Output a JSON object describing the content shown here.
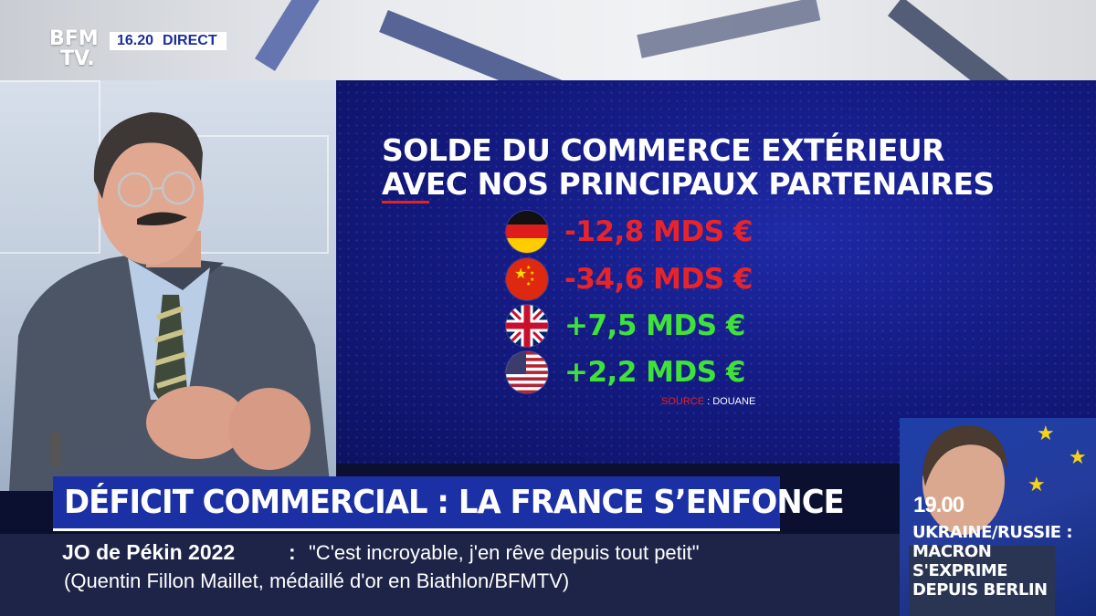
{
  "channel": {
    "logo_line1": "BFM",
    "logo_line2": "TV.",
    "time": "16.20",
    "live_label": "DIRECT"
  },
  "graphic": {
    "title_line1": "SOLDE DU COMMERCE EXTÉRIEUR",
    "title_line2": "AVEC NOS PRINCIPAUX PARTENAIRES",
    "rows": [
      {
        "flag": "germany-flag-icon",
        "value": "-12,8 MDS €",
        "color": "#e8242a"
      },
      {
        "flag": "china-flag-icon",
        "value": "-34,6 MDS €",
        "color": "#e8242a"
      },
      {
        "flag": "uk-flag-icon",
        "value": "+7,5 MDS €",
        "color": "#3fe23a"
      },
      {
        "flag": "usa-flag-icon",
        "value": "+2,2 MDS €",
        "color": "#3fe23a"
      }
    ],
    "source_key": "SOURCE",
    "source_value": ": DOUANE"
  },
  "headline": {
    "text": "DÉFICIT COMMERCIAL : LA FRANCE S’ENFONCE"
  },
  "ticker": {
    "label": "JO de Pékin 2022",
    "colon": ":",
    "quote": "\"C'est incroyable, j'en rêve depuis tout petit\"",
    "attribution": "(Quentin Fillon Maillet, médaillé d'or en Biathlon/BFMTV)"
  },
  "upcoming": {
    "time": "19.00",
    "line1": "UKRAINE/RUSSIE :",
    "line2": "MACRON",
    "line3": "S'EXPRIME",
    "line4": "DEPUIS BERLIN"
  },
  "colors": {
    "accent_blue": "#1c30a5",
    "negative": "#e8242a",
    "positive": "#3fe23a"
  }
}
